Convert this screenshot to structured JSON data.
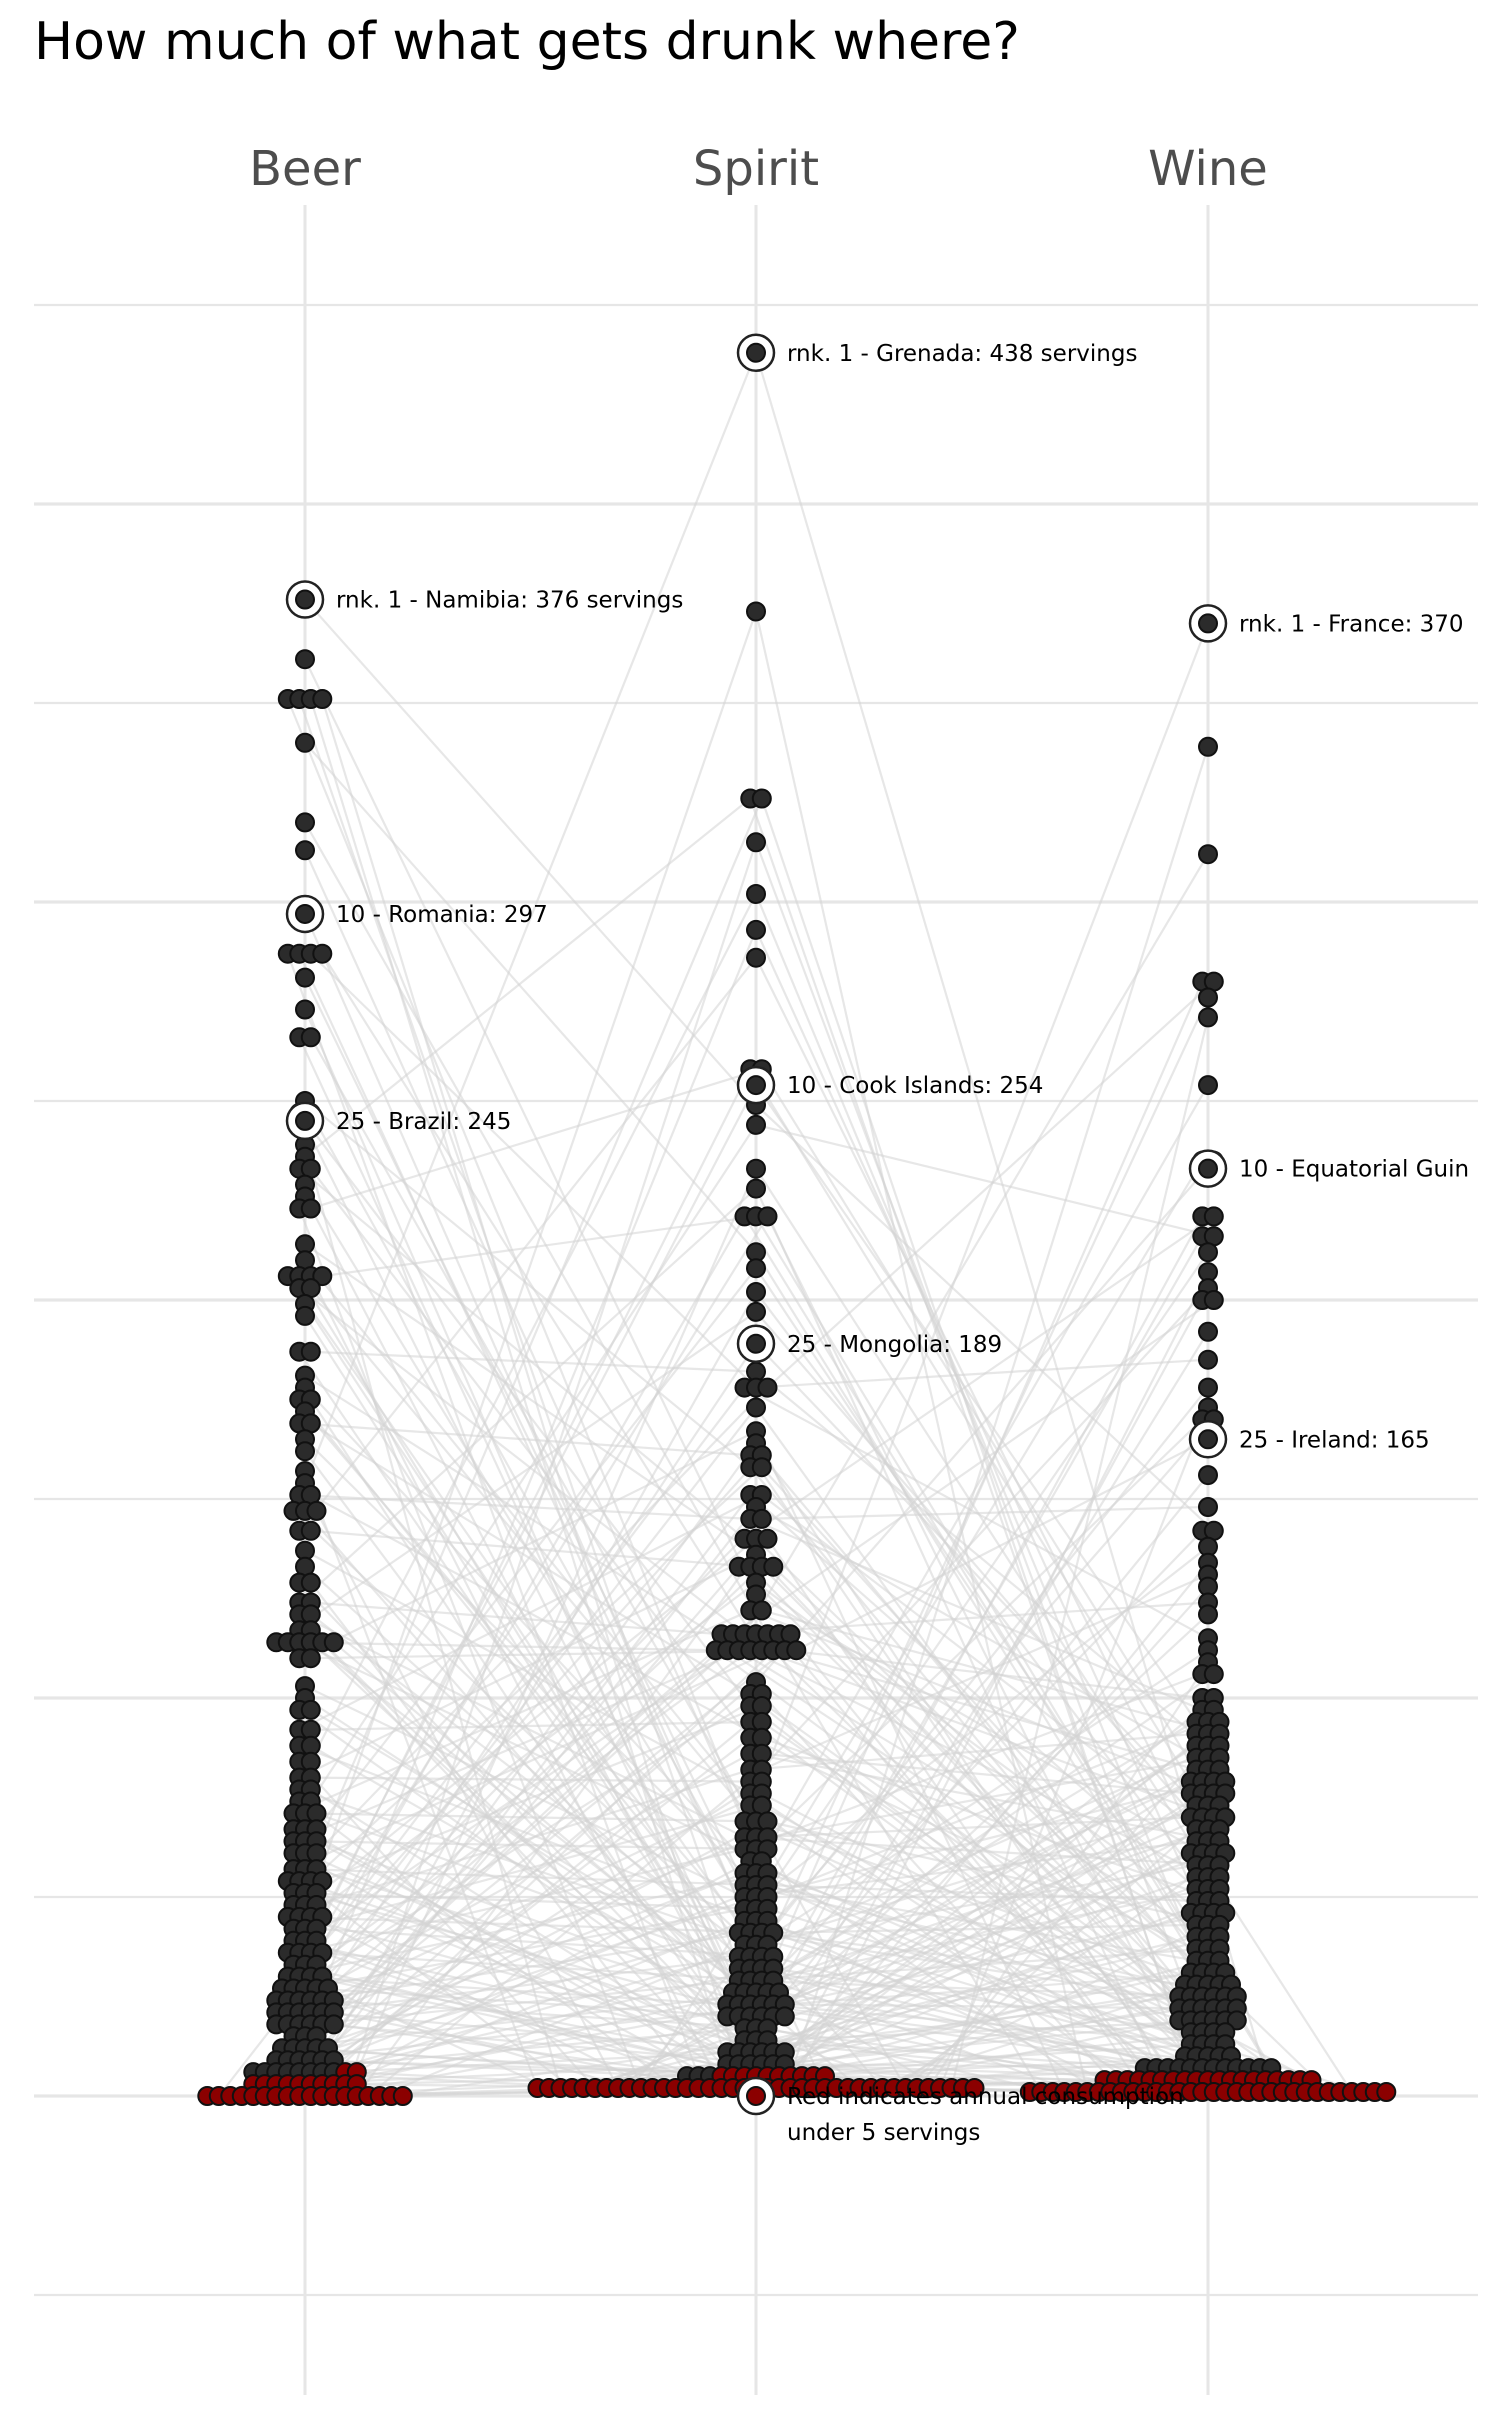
{
  "title": "How much of what gets drunk where?",
  "chart_data": {
    "type": "scatter",
    "subtype": "beeswarm",
    "title": "How much of what gets drunk where?",
    "xlabel": "",
    "ylabel": "",
    "categories": [
      "Beer",
      "Spirit",
      "Wine"
    ],
    "ylim": [
      -12,
      485
    ],
    "grid": true,
    "colors": {
      "normal": "#2b2b2b",
      "low": "#8b0000",
      "grid": "#e6e6e6",
      "link": "#d4d4d4",
      "column_label": "#4d4d4d",
      "annotation_ring": "#222222"
    },
    "low_threshold": 5,
    "columns": [
      {
        "name": "Beer",
        "values": [
          376,
          361,
          351,
          350,
          350,
          350,
          340,
          320,
          313,
          297,
          287,
          286,
          286,
          285,
          281,
          273,
          266,
          266,
          250,
          247,
          245,
          244,
          239,
          236,
          233,
          231,
          229,
          226,
          223,
          221,
          214,
          210,
          206,
          206,
          206,
          205,
          203,
          202,
          199,
          196,
          187,
          185,
          181,
          178,
          175,
          174,
          172,
          169,
          167,
          165,
          162,
          157,
          154,
          151,
          149,
          147,
          146,
          145,
          142,
          140,
          137,
          133,
          129,
          127,
          124,
          122,
          121,
          120,
          117,
          115,
          114,
          113,
          112,
          112,
          112,
          112,
          110,
          108,
          103,
          100,
          97,
          95,
          92,
          91,
          88,
          86,
          84,
          82,
          80,
          79,
          77,
          76,
          74,
          73,
          71,
          70,
          69,
          67,
          66,
          65,
          64,
          63,
          62,
          61,
          60,
          59,
          57,
          56,
          55,
          54,
          53,
          53,
          52,
          51,
          50,
          49,
          48,
          47,
          46,
          45,
          45,
          44,
          43,
          42,
          41,
          40,
          39,
          38,
          37,
          36,
          36,
          35,
          34,
          33,
          32,
          31,
          30,
          30,
          29,
          28,
          27,
          26,
          26,
          25,
          25,
          24,
          24,
          23,
          23,
          22,
          22,
          21,
          21,
          20,
          20,
          19,
          19,
          18,
          18,
          17,
          17,
          16,
          16,
          15,
          14,
          13,
          12,
          12,
          11,
          11,
          10,
          9,
          9,
          8,
          8,
          7,
          7,
          6,
          6,
          6,
          6,
          6,
          5,
          5,
          5,
          4,
          4,
          3,
          3,
          3,
          3,
          2,
          2,
          1,
          1,
          1,
          1,
          0,
          0,
          0,
          0,
          0,
          0,
          0,
          0,
          0,
          0,
          0,
          0,
          0,
          0,
          0,
          0,
          0,
          0
        ],
        "annotations": [
          {
            "rank": 1,
            "text": "rnk. 1 - Namibia: 376 servings",
            "value": 376
          },
          {
            "rank": 10,
            "text": "10 - Romania: 297",
            "value": 297
          },
          {
            "rank": 25,
            "text": "25 - Brazil: 245",
            "value": 245
          }
        ]
      },
      {
        "name": "Spirit",
        "values": [
          438,
          373,
          326,
          326,
          315,
          302,
          293,
          286,
          258,
          256,
          254,
          249,
          244,
          233,
          228,
          221,
          221,
          221,
          212,
          208,
          202,
          197,
          189,
          182,
          178,
          176,
          176,
          173,
          167,
          164,
          161,
          159,
          158,
          156,
          151,
          150,
          148,
          145,
          143,
          140,
          138,
          138,
          136,
          133,
          131,
          131,
          131,
          129,
          126,
          122,
          122,
          116,
          115,
          114,
          114,
          114,
          114,
          114,
          112,
          112,
          112,
          112,
          110,
          110,
          110,
          110,
          104,
          101,
          99,
          98,
          96,
          94,
          92,
          90,
          88,
          86,
          84,
          82,
          80,
          79,
          77,
          76,
          75,
          73,
          71,
          69,
          68,
          67,
          65,
          64,
          63,
          62,
          61,
          60,
          59,
          57,
          56,
          55,
          54,
          53,
          52,
          51,
          50,
          49,
          48,
          47,
          46,
          45,
          44,
          43,
          42,
          41,
          41,
          40,
          39,
          38,
          37,
          36,
          35,
          34,
          34,
          33,
          32,
          31,
          31,
          30,
          29,
          28,
          27,
          27,
          26,
          25,
          25,
          24,
          24,
          23,
          23,
          22,
          22,
          21,
          21,
          20,
          20,
          19,
          19,
          18,
          18,
          17,
          16,
          15,
          14,
          13,
          12,
          11,
          11,
          10,
          10,
          9,
          9,
          8,
          8,
          7,
          7,
          6,
          6,
          5,
          5,
          5,
          4,
          4,
          4,
          4,
          3,
          3,
          3,
          3,
          3,
          3,
          2,
          2,
          2,
          2,
          2,
          2,
          2,
          1,
          1,
          1,
          1,
          1,
          1,
          1,
          1,
          0,
          0,
          0,
          0,
          0,
          0,
          0,
          0,
          0,
          0,
          0,
          0,
          0,
          0,
          0,
          0,
          0,
          0,
          0,
          0,
          0,
          0,
          0,
          0
        ],
        "annotations": [
          {
            "rank": 1,
            "text": "rnk. 1 - Grenada: 438 servings",
            "value": 438
          },
          {
            "rank": 10,
            "text": "10 - Cook Islands: 254",
            "value": 254
          },
          {
            "rank": 25,
            "text": "25 - Mongolia: 189",
            "value": 189
          },
          {
            "rank": null,
            "text": "Red indicates annual consumption under 5 servings",
            "value": 0
          }
        ]
      },
      {
        "name": "Wine",
        "values": [
          370,
          339,
          312,
          280,
          278,
          276,
          271,
          254,
          235,
          233,
          221,
          220,
          216,
          216,
          212,
          207,
          203,
          200,
          198,
          192,
          185,
          178,
          173,
          170,
          168,
          165,
          156,
          148,
          142,
          140,
          138,
          134,
          131,
          128,
          124,
          121,
          115,
          112,
          109,
          106,
          104,
          100,
          99,
          97,
          95,
          94,
          93,
          92,
          91,
          90,
          89,
          88,
          87,
          86,
          85,
          84,
          83,
          82,
          81,
          80,
          79,
          78,
          78,
          77,
          76,
          76,
          75,
          74,
          73,
          72,
          71,
          70,
          70,
          69,
          68,
          67,
          66,
          65,
          64,
          63,
          62,
          61,
          61,
          60,
          59,
          58,
          57,
          56,
          55,
          54,
          53,
          52,
          51,
          50,
          49,
          48,
          47,
          46,
          45,
          45,
          44,
          43,
          42,
          41,
          40,
          39,
          38,
          37,
          36,
          35,
          34,
          33,
          32,
          31,
          31,
          30,
          29,
          28,
          28,
          27,
          26,
          26,
          25,
          25,
          24,
          24,
          23,
          23,
          22,
          22,
          21,
          21,
          20,
          20,
          19,
          19,
          18,
          18,
          17,
          17,
          16,
          16,
          15,
          14,
          13,
          12,
          11,
          11,
          10,
          9,
          9,
          8,
          8,
          7,
          7,
          7,
          7,
          6,
          6,
          6,
          6,
          5,
          5,
          5,
          5,
          4,
          4,
          4,
          4,
          4,
          3,
          3,
          3,
          3,
          3,
          3,
          2,
          2,
          2,
          2,
          2,
          2,
          2,
          2,
          1,
          1,
          1,
          1,
          1,
          1,
          1,
          1,
          1,
          1,
          1,
          0,
          0,
          0,
          0,
          0,
          0,
          0,
          0,
          0,
          0,
          0,
          0,
          0,
          0,
          0,
          0,
          0,
          0,
          0,
          0,
          0
        ],
        "annotations": [
          {
            "rank": 1,
            "text": "rnk. 1 - France: 370",
            "value": 370
          },
          {
            "rank": 10,
            "text": "10 - Equatorial Guin",
            "value": 233
          },
          {
            "rank": 25,
            "text": "25 - Ireland: 165",
            "value": 165
          }
        ]
      }
    ]
  }
}
